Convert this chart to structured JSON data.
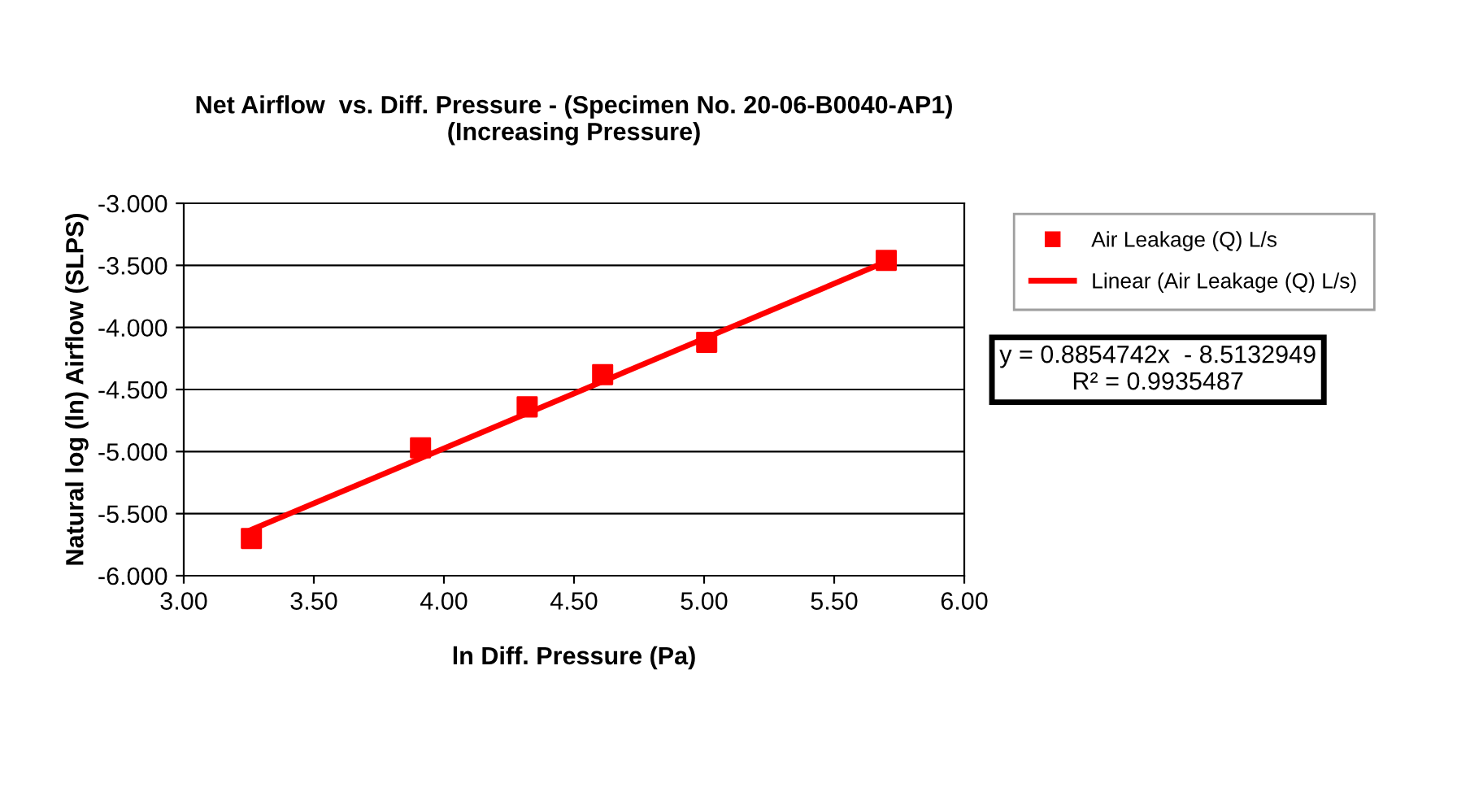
{
  "chart_data": {
    "type": "scatter",
    "title": "Net Airflow  vs. Diff. Pressure - (Specimen No. 20-06-B0040-AP1)\n(Increasing Pressure)",
    "xlabel": "ln Diff. Pressure (Pa)",
    "ylabel": "Natural log (ln) Airflow (SLPS)",
    "series": [
      {
        "name": "Air Leakage (Q) L/s",
        "marker": "square",
        "color": "#ff0000",
        "x": [
          3.26,
          3.91,
          4.32,
          4.61,
          5.01,
          5.7
        ],
        "values": [
          -5.7,
          -4.97,
          -4.64,
          -4.38,
          -4.12,
          -3.46
        ]
      },
      {
        "name": "Linear (Air Leakage (Q) L/s)",
        "type": "line",
        "marker": "none",
        "color": "#ff0000",
        "x": [
          3.26,
          5.7
        ],
        "values": [
          -5.63,
          -3.47
        ]
      }
    ],
    "line_style": "solid",
    "grid": "y",
    "legend": "right",
    "annotations": [
      "y = 0.8854742x  - 8.5132949\nR² = 0.9935487"
    ],
    "xlim": [
      3.0,
      6.0
    ],
    "xticks": [
      {
        "value": 3.0,
        "label": "3.00"
      },
      {
        "value": 3.5,
        "label": "3.50"
      },
      {
        "value": 4.0,
        "label": "4.00"
      },
      {
        "value": 4.5,
        "label": "4.50"
      },
      {
        "value": 5.0,
        "label": "5.00"
      },
      {
        "value": 5.5,
        "label": "5.50"
      },
      {
        "value": 6.0,
        "label": "6.00"
      }
    ],
    "ylim": [
      -6.0,
      -3.0
    ],
    "yticks": [
      {
        "value": -6.0,
        "label": "-6.000"
      },
      {
        "value": -5.5,
        "label": "-5.500"
      },
      {
        "value": -5.0,
        "label": "-5.000"
      },
      {
        "value": -4.5,
        "label": "-4.500"
      },
      {
        "value": -4.0,
        "label": "-4.000"
      },
      {
        "value": -3.5,
        "label": "-3.500"
      },
      {
        "value": -3.0,
        "label": "-3.000"
      }
    ]
  }
}
